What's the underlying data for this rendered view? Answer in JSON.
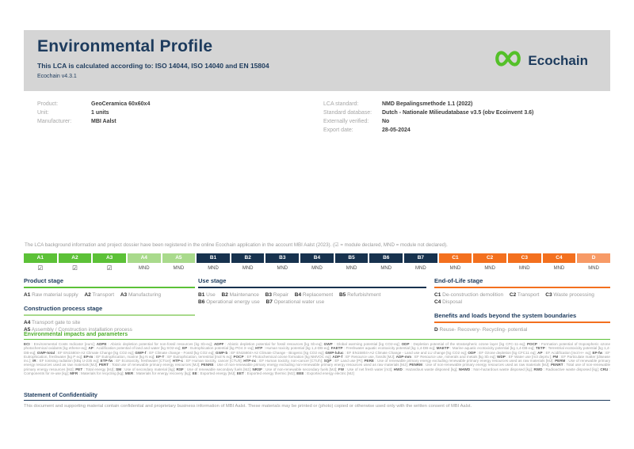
{
  "header": {
    "title": "Environmental Profile",
    "subtitle": "This LCA is calculated according to: ISO 14044, ISO 14040 and EN 15804",
    "version": "Ecochain v4.3.1",
    "logo_text": "Ecochain"
  },
  "colors": {
    "brand_green": "#5cc137",
    "light_green": "#a9da8c",
    "navy": "#17324e",
    "orange": "#f3701e",
    "light_orange": "#f79a66",
    "banner_gray": "#d5d5d5"
  },
  "product_info": {
    "rows": [
      {
        "label": "Product:",
        "value": "GeoCeramica 60x60x4"
      },
      {
        "label": "Unit:",
        "value": "1 units"
      },
      {
        "label": "Manufacturer:",
        "value": "MBI Aalst"
      }
    ]
  },
  "lca_info": {
    "rows": [
      {
        "label": "LCA standard:",
        "value": "NMD Bepalingsmethode 1.1 (2022)"
      },
      {
        "label": "Standard database:",
        "value": "Dutch - Nationale Milieudatabase v3.5 (obv Ecoinvent 3.6)"
      },
      {
        "label": "Externally verified:",
        "value": "No"
      },
      {
        "label": "Export date:",
        "value": "28-05-2024"
      }
    ]
  },
  "registration_note": "The LCA background information and project dossier have been registered in the online Ecochain application in the account MBI Aalst (2023). (☑ = module declared, MND = module not declared).",
  "modules": [
    {
      "code": "A1",
      "group": "product",
      "status": "☑"
    },
    {
      "code": "A2",
      "group": "product",
      "status": "☑"
    },
    {
      "code": "A3",
      "group": "product",
      "status": "☑"
    },
    {
      "code": "A4",
      "group": "construction",
      "status": "MND"
    },
    {
      "code": "A5",
      "group": "construction",
      "status": "MND"
    },
    {
      "code": "B1",
      "group": "use",
      "status": "MND"
    },
    {
      "code": "B2",
      "group": "use",
      "status": "MND"
    },
    {
      "code": "B3",
      "group": "use",
      "status": "MND"
    },
    {
      "code": "B4",
      "group": "use",
      "status": "MND"
    },
    {
      "code": "B5",
      "group": "use",
      "status": "MND"
    },
    {
      "code": "B6",
      "group": "use",
      "status": "MND"
    },
    {
      "code": "B7",
      "group": "use",
      "status": "MND"
    },
    {
      "code": "C1",
      "group": "eol",
      "status": "MND"
    },
    {
      "code": "C2",
      "group": "eol",
      "status": "MND"
    },
    {
      "code": "C3",
      "group": "eol",
      "status": "MND"
    },
    {
      "code": "C4",
      "group": "eol",
      "status": "MND"
    },
    {
      "code": "D",
      "group": "benefits",
      "status": "MND"
    }
  ],
  "stage_sections": {
    "product": {
      "title": "Product stage",
      "items": [
        {
          "code": "A1",
          "label": "Raw material supply"
        },
        {
          "code": "A2",
          "label": "Transport"
        },
        {
          "code": "A3",
          "label": "Manufacturing"
        }
      ]
    },
    "construction": {
      "title": "Construction process stage",
      "items": [
        {
          "code": "A4",
          "label": "Transport gate to site"
        },
        {
          "code": "A5",
          "label": "Assembly / Construction installation process"
        }
      ]
    },
    "use": {
      "title": "Use stage",
      "items": [
        {
          "code": "B1",
          "label": "Use"
        },
        {
          "code": "B2",
          "label": "Maintenance"
        },
        {
          "code": "B3",
          "label": "Repair"
        },
        {
          "code": "B4",
          "label": "Replacement"
        },
        {
          "code": "B5",
          "label": "Refurbishment"
        },
        {
          "code": "B6",
          "label": "Operational energy use"
        },
        {
          "code": "B7",
          "label": "Operational water use"
        }
      ]
    },
    "eol": {
      "title": "End-of-Life stage",
      "items": [
        {
          "code": "C1",
          "label": "De-construction demolition"
        },
        {
          "code": "C2",
          "label": "Transport"
        },
        {
          "code": "C3",
          "label": "Waste processing"
        },
        {
          "code": "C4",
          "label": "Disposal"
        }
      ]
    },
    "benefits": {
      "title": "Benefits and loads beyond the system boundaries",
      "items": [
        {
          "code": "D",
          "label": "Reuse- Recovery- Recycling- potential"
        }
      ]
    }
  },
  "impacts": {
    "heading": "Environmental impacts and parameters",
    "definitions": [
      {
        "term": "ECI",
        "def": "Environmental Costs Indicator [euro]"
      },
      {
        "term": "ADPE",
        "def": "Abiotic depletion potential for non-fossil resources [kg Sb-eq]"
      },
      {
        "term": "ADPF",
        "def": "Abiotic depletion potential for fossil resources [kg Sb-eq]"
      },
      {
        "term": "GWP",
        "def": "Global warming potential [kg CO2-eq]"
      },
      {
        "term": "ODP",
        "def": "Depletion potential of the stratospheric ozone layer [kg CFC-11-eq]"
      },
      {
        "term": "POCP",
        "def": "Formation potential of tropospheric ozone photochemical oxidants [kg ethene-eq]"
      },
      {
        "term": "AP",
        "def": "Acidification potential of land and water [kg SO2-eq]"
      },
      {
        "term": "EP",
        "def": "Eutrophication potential [kg PO4 3--eq]"
      },
      {
        "term": "HTP",
        "def": "Human toxicity potential [kg 1,4-DB-eq]"
      },
      {
        "term": "FAETP",
        "def": "Freshwater aquatic ecotoxicity potential [kg 1,4-DB-eq]"
      },
      {
        "term": "MAETP",
        "def": "Marine aquatic ecotoxicity potential [kg 1,4-DB-eq]"
      },
      {
        "term": "TETP",
        "def": "Terrestrial ecotoxicity potential [kg 1,4-DB-eq]"
      },
      {
        "term": "GWP-total",
        "def": "EF EN15804+A2 Climate Change [kg CO2 eq]"
      },
      {
        "term": "GWP-f",
        "def": "EF Climate change - Fossil [kg CO2 eq]"
      },
      {
        "term": "GWP-b",
        "def": "EF EN15804+A2 Climate Change - Biogenic [kg CO2 eq]"
      },
      {
        "term": "GWP-luluc",
        "def": "EF EN15804+A2 Climate Change - Land use and LU change [kg CO2 eq]"
      },
      {
        "term": "ODP",
        "def": "EF Ozone depletion [kg CFC11 eq]"
      },
      {
        "term": "AP",
        "def": "EF Acidification [mol H+ eq]"
      },
      {
        "term": "EP-fw",
        "def": "EF Eutrophication, freshwater [kg P eq]"
      },
      {
        "term": "EP-m",
        "def": "EF Eutrophication, marine [kg N eq]"
      },
      {
        "term": "EP-T",
        "def": "EF Eutrophication, terrestrial [mol N eq]"
      },
      {
        "term": "POCP",
        "def": "EF Photochemical ozone formation [kg NMVOC eq]"
      },
      {
        "term": "ADP-f",
        "def": "EF Resource use, fossils [MJ]"
      },
      {
        "term": "ADP-mm",
        "def": "EF Resource use, minerals and metals [kg Sb eq]"
      },
      {
        "term": "WDP",
        "def": "EF Water use [m3 depriv.]"
      },
      {
        "term": "PM",
        "def": "EF Particulate matter [disease inc.]"
      },
      {
        "term": "IR",
        "def": "EF Ionising radiation [kBq U-235 eq]"
      },
      {
        "term": "ETP-fw",
        "def": "EF Ecotoxicity, freshwater [CTUe]"
      },
      {
        "term": "HTP-c",
        "def": "EF Human toxicity, cancer [CTUh]"
      },
      {
        "term": "HTP-nc",
        "def": "EF Human toxicity, non-cancer [CTUh]"
      },
      {
        "term": "SQP",
        "def": "EF Land use [Pt]"
      },
      {
        "term": "PERE",
        "def": "Use of renewable primary energy excluding renewable primary energy resources used as raw materials [MJ]"
      },
      {
        "term": "PERM",
        "def": "Use of renewable primary energy resources used as raw materials [MJ]"
      },
      {
        "term": "PERT",
        "def": "Total use of renewable primary energy resources [MJ]"
      },
      {
        "term": "PENRE",
        "def": "Use of non-renewable primary energy excluding non-renewable primary energy resources used as raw materials [MJ]"
      },
      {
        "term": "PENRM",
        "def": "Use of non-renewable primary energy resources used as raw materials [MJ]"
      },
      {
        "term": "PENRT",
        "def": "Total use of non-renewable primary energy resources [MJ]"
      },
      {
        "term": "PET",
        "def": "Total energy [MJ]"
      },
      {
        "term": "SM",
        "def": "Use of secondary material [kg]"
      },
      {
        "term": "RSF",
        "def": "Use of renewable secondary fuels [MJ]"
      },
      {
        "term": "NRSF",
        "def": "Use of non-renewable secondary fuels [MJ]"
      },
      {
        "term": "FW",
        "def": "Use of net fresh water [m3]"
      },
      {
        "term": "HWD",
        "def": "Hazardous waste disposed [kg]"
      },
      {
        "term": "NHWD",
        "def": "Non-hazardous waste disposed [kg]"
      },
      {
        "term": "RWD",
        "def": "Radioactive waste disposed [kg]"
      },
      {
        "term": "CRU",
        "def": "Components for re-use [kg]"
      },
      {
        "term": "MFR",
        "def": "Materials for recycling [kg]"
      },
      {
        "term": "MER",
        "def": "Materials for energy recovery [kg]"
      },
      {
        "term": "EE",
        "def": "Exported energy [MJ]"
      },
      {
        "term": "EET",
        "def": "Exported energy thermic [MJ]"
      },
      {
        "term": "EEE",
        "def": "Exported energy electric [MJ]"
      }
    ]
  },
  "confidentiality": {
    "heading": "Statement of Confidentiality",
    "text": "This document and supporting material contain confidential and proprietary business information of MBI Aalst. These materials may be printed or (photo) copied or otherwise used only with the written consent of MBI Aalst."
  }
}
